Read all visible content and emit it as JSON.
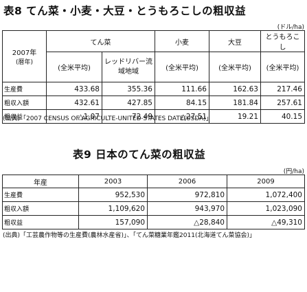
{
  "table8": {
    "title": "表8 てん菜・小麦・大豆・とうもろこしの粗収益",
    "unit": "(ドル/ha)",
    "corner_year": "2007年",
    "corner_sub": "(暦年)",
    "col_sugar_beet": "てん菜",
    "col_wheat": "小麦",
    "col_soybean": "大豆",
    "col_corn": "とうもろこし",
    "sub_national": "(全米平均)",
    "sub_red_river": "レッドリバー流域地域",
    "rows": [
      {
        "label": "生産費",
        "v": [
          "433.68",
          "355.36",
          "111.66",
          "162.63",
          "217.46"
        ]
      },
      {
        "label": "粗収入額",
        "v": [
          "432.61",
          "427.85",
          "84.15",
          "181.84",
          "257.61"
        ]
      },
      {
        "label": "粗収益",
        "v": [
          "△1.07",
          "72.49",
          "△27.51",
          "19.21",
          "40.15"
        ]
      }
    ],
    "source": "(出典)「2007 CENSUS OF AGRICULTE-UNITED STATES DATE(USDA)」"
  },
  "table9": {
    "title": "表9 日本のてん菜の粗収益",
    "unit": "(円/ha)",
    "header_year": "年産",
    "years": [
      "2003",
      "2006",
      "2009"
    ],
    "rows": [
      {
        "label": "生産費",
        "v": [
          "952,530",
          "972,810",
          "1,072,400"
        ]
      },
      {
        "label": "粗収入額",
        "v": [
          "1,109,620",
          "943,970",
          "1,023,090"
        ]
      },
      {
        "label": "粗収益",
        "v": [
          "157,090",
          "△28,840",
          "△49,310"
        ]
      }
    ],
    "source_line1": "(出典)「工芸農作物等の生産費(農林水産省)」、「てん菜糖業年鑑2011(北海道てん菜協会)」"
  }
}
